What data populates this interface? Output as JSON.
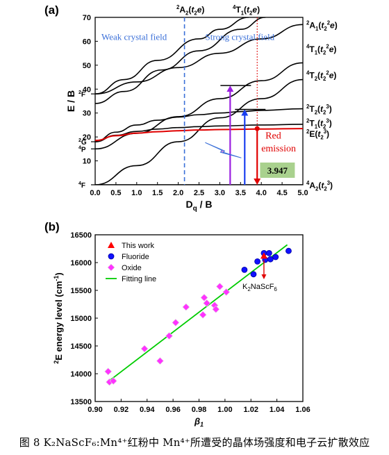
{
  "caption": "图 8 K₂NaScF₆:Mn⁴⁺红粉中 Mn⁴⁺所遭受的晶体场强度和电子云扩散效应",
  "chart_data": [
    {
      "panel": "(a)",
      "type": "line",
      "title": "",
      "xlabel": "Dq / B",
      "ylabel": "E / B",
      "xlim": [
        0,
        5.0
      ],
      "ylim": [
        0,
        70
      ],
      "xticks": [
        "0.0",
        "0.5",
        "1.0",
        "1.5",
        "2.0",
        "2.5",
        "3.0",
        "3.5",
        "4.0",
        "4.5",
        "5.0"
      ],
      "yticks": [
        "10",
        "20",
        "30",
        "40",
        "50",
        "60",
        "70"
      ],
      "left_terms": [
        {
          "label": "4F",
          "y": 0
        },
        {
          "label": "4P",
          "y": 15
        },
        {
          "label": "2G",
          "y": 18
        },
        {
          "label": "2F",
          "y": 38
        }
      ],
      "region_labels": [
        "Weak crystal field",
        "Strong crystal field"
      ],
      "top_labels": [
        "2A2(t2e)",
        "4T1(t2e)"
      ],
      "right_labels": [
        "2A1(t2²e)",
        "4T1(t2²e)",
        "4T2(t2²e)",
        "2T2(t2³)",
        "2T1(t2³)",
        "2E(t2³)",
        "4A2(t2³)"
      ],
      "series": [
        {
          "name": "2A2(t2e)",
          "color": "#000000",
          "points": [
            [
              0,
              38
            ],
            [
              0.7,
              44
            ],
            [
              1.5,
              52
            ],
            [
              2.5,
              61
            ],
            [
              3.0,
              65
            ],
            [
              3.7,
              70
            ]
          ]
        },
        {
          "name": "4T1(t2e)",
          "color": "#000000",
          "points": [
            [
              0,
              34
            ],
            [
              0.7,
              39
            ],
            [
              1.6,
              48
            ],
            [
              2.5,
              56
            ],
            [
              3.5,
              65
            ],
            [
              4.1,
              70
            ]
          ]
        },
        {
          "name": "2A1(t2²e)",
          "color": "#000000",
          "points": [
            [
              0,
              38
            ],
            [
              1,
              43
            ],
            [
              2,
              49
            ],
            [
              3,
              55
            ],
            [
              4,
              61
            ],
            [
              5,
              67
            ]
          ]
        },
        {
          "name": "4T1(t2²e)",
          "color": "#000000",
          "points": [
            [
              0,
              15
            ],
            [
              1,
              21.5
            ],
            [
              2,
              28.5
            ],
            [
              3,
              36
            ],
            [
              4,
              43.5
            ],
            [
              5,
              51
            ]
          ]
        },
        {
          "name": "4T2(t2²e)",
          "color": "#000000",
          "points": [
            [
              0,
              0
            ],
            [
              1,
              8
            ],
            [
              2,
              18
            ],
            [
              3,
              28
            ],
            [
              4,
              36
            ],
            [
              5,
              44
            ]
          ]
        },
        {
          "name": "2T2(t2³)",
          "color": "#000000",
          "points": [
            [
              0,
              18
            ],
            [
              0.5,
              22
            ],
            [
              1,
              25
            ],
            [
              1.5,
              27
            ],
            [
              2,
              28.3
            ],
            [
              2.5,
              29.3
            ],
            [
              3,
              30
            ],
            [
              3.5,
              30.6
            ],
            [
              4,
              31.1
            ],
            [
              5,
              31.8
            ]
          ]
        },
        {
          "name": "2T1(t2³)",
          "color": "#000000",
          "points": [
            [
              0,
              18
            ],
            [
              0.5,
              20.7
            ],
            [
              1,
              22.3
            ],
            [
              1.5,
              23.3
            ],
            [
              2,
              23.9
            ],
            [
              2.5,
              24.3
            ],
            [
              3,
              24.6
            ],
            [
              4,
              25
            ],
            [
              5,
              25.3
            ]
          ]
        },
        {
          "name": "2E(t2³)",
          "color": "#e00000",
          "points": [
            [
              0,
              18.5
            ],
            [
              0.5,
              20.5
            ],
            [
              1,
              21.6
            ],
            [
              1.5,
              22.2
            ],
            [
              2,
              22.6
            ],
            [
              2.5,
              22.9
            ],
            [
              3,
              23.1
            ],
            [
              4,
              23.3
            ],
            [
              5,
              23.5
            ]
          ]
        },
        {
          "name": "4A2(t2³)",
          "color": "#000000",
          "points": [
            [
              0,
              0
            ],
            [
              5,
              0
            ]
          ]
        }
      ],
      "weak_strong_boundary": 2.15,
      "dq_b_line": 3.9,
      "dq_b_value": "3.947",
      "red_emission_label": [
        "Red",
        "emission"
      ],
      "excitations": [
        {
          "x": 3.25,
          "to": 41.5,
          "color": "#9a1ee0"
        },
        {
          "x": 3.6,
          "to": 31.5,
          "color": "#1a3ff0"
        }
      ],
      "emission": {
        "x": 3.9,
        "from": 23.5,
        "color": "#e00000"
      }
    },
    {
      "panel": "(b)",
      "type": "scatter",
      "xlabel": "β1",
      "ylabel": "2E energy level (cm-1)",
      "xlim": [
        0.9,
        1.06
      ],
      "ylim": [
        13500,
        16500
      ],
      "xticks": [
        "0.90",
        "0.92",
        "0.94",
        "0.96",
        "0.98",
        "1.00",
        "1.02",
        "1.04",
        "1.06"
      ],
      "yticks": [
        "13500",
        "14000",
        "14500",
        "15000",
        "15500",
        "16000",
        "16500"
      ],
      "legend": [
        "This work",
        "Fluoride",
        "Oxide",
        "Fitting line"
      ],
      "annotation": "K2NaScF6",
      "series": [
        {
          "name": "This work",
          "marker": "triangle",
          "color": "#ff0000",
          "points": [
            [
              1.03,
              16120
            ]
          ]
        },
        {
          "name": "Fluoride",
          "marker": "circle",
          "color": "#1010ff",
          "points": [
            [
              1.015,
              15870
            ],
            [
              1.022,
              15790
            ],
            [
              1.025,
              16020
            ],
            [
              1.03,
              16170
            ],
            [
              1.031,
              16050
            ],
            [
              1.034,
              16170
            ],
            [
              1.035,
              16060
            ],
            [
              1.039,
              16100
            ],
            [
              1.049,
              16210
            ]
          ]
        },
        {
          "name": "Oxide",
          "marker": "diamond",
          "color": "#ff33ff",
          "points": [
            [
              0.91,
              14040
            ],
            [
              0.911,
              13850
            ],
            [
              0.914,
              13870
            ],
            [
              0.938,
              14450
            ],
            [
              0.95,
              14230
            ],
            [
              0.957,
              14680
            ],
            [
              0.962,
              14920
            ],
            [
              0.97,
              15200
            ],
            [
              0.983,
              15060
            ],
            [
              0.984,
              15370
            ],
            [
              0.986,
              15270
            ],
            [
              0.992,
              15230
            ],
            [
              0.993,
              15160
            ],
            [
              0.996,
              15570
            ],
            [
              1.001,
              15470
            ]
          ]
        },
        {
          "name": "Fitting line",
          "marker": "line",
          "color": "#00cc00",
          "points": [
            [
              0.909,
              13840
            ],
            [
              1.048,
              16320
            ]
          ]
        }
      ]
    }
  ]
}
